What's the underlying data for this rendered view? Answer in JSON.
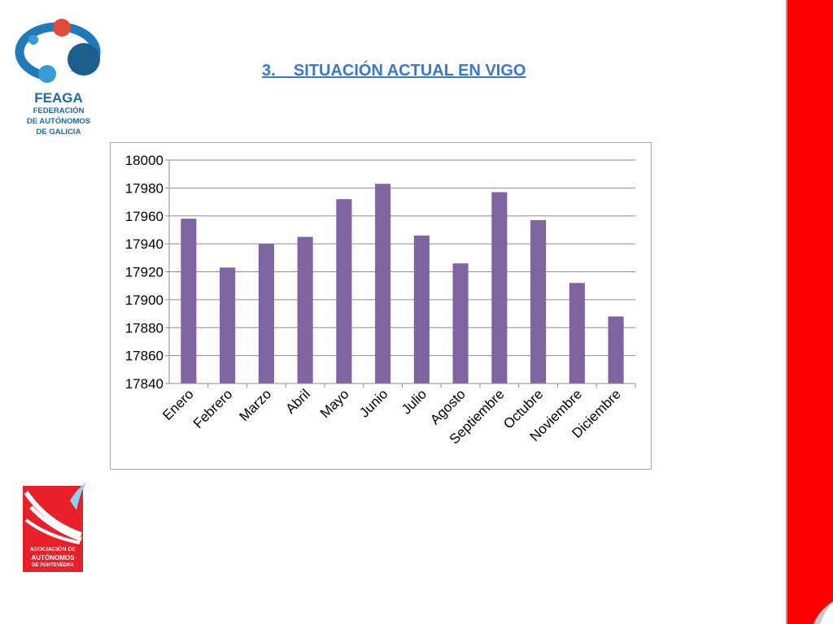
{
  "header": {
    "title": "3.    SITUACIÓN ACTUAL EN VIGO"
  },
  "logos": {
    "feaga": {
      "name": "FEAGA",
      "line1": "FEDERACIÓN",
      "line2": "DE AUTÓNOMOS",
      "line3": "DE GALICIA"
    },
    "pontevedra": {
      "line1": "ASOCIACIÓN DE",
      "line2": "AUTÓNOMOS",
      "line3": "DE PONTEVEDRA"
    }
  },
  "colors": {
    "bar": "#8064a2",
    "gridline": "#8c8c8c",
    "title": "#3a78c8",
    "feaga_blue": "#1e6aa6",
    "accent_red": "#ff0000"
  },
  "chart_data": {
    "type": "bar",
    "categories": [
      "Enero",
      "Febrero",
      "Marzo",
      "Abril",
      "Mayo",
      "Junio",
      "Julio",
      "Agosto",
      "Septiembre",
      "Octubre",
      "Noviembre",
      "Diciembre"
    ],
    "values": [
      17958,
      17923,
      17940,
      17945,
      17972,
      17983,
      17946,
      17926,
      17977,
      17957,
      17912,
      17888
    ],
    "ylim": [
      17840,
      18000
    ],
    "yticks": [
      18000,
      17980,
      17960,
      17940,
      17920,
      17900,
      17880,
      17860,
      17840
    ],
    "grid": true,
    "legend": "none"
  }
}
